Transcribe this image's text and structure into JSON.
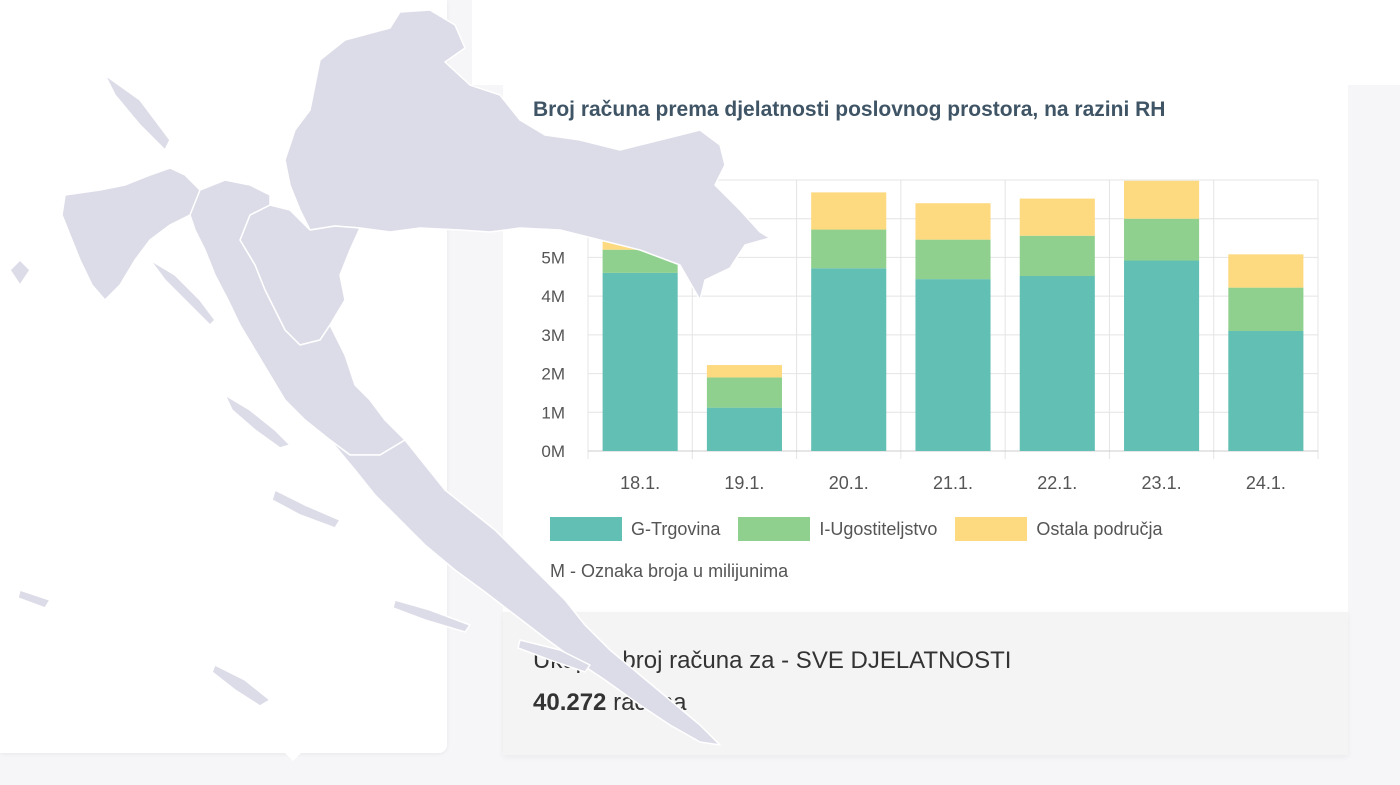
{
  "chart_data": {
    "type": "bar",
    "stacked": true,
    "title": "Broj računa prema djelatnosti poslovnog prostora, na razini RH",
    "categories": [
      "18.1.",
      "19.1.",
      "20.1.",
      "21.1.",
      "22.1.",
      "23.1.",
      "24.1."
    ],
    "series": [
      {
        "name": "G-Trgovina",
        "color": "#61bfb3",
        "values": [
          4.6,
          1.12,
          4.72,
          4.44,
          4.52,
          4.92,
          3.1
        ]
      },
      {
        "name": "I-Ugostiteljstvo",
        "color": "#90d08f",
        "values": [
          0.6,
          0.78,
          1.0,
          1.02,
          1.04,
          1.08,
          1.12
        ]
      },
      {
        "name": "Ostala područja",
        "color": "#fdd97f",
        "values": [
          1.0,
          0.32,
          0.96,
          0.94,
          0.96,
          0.98,
          0.86
        ]
      }
    ],
    "y_ticks": [
      "0M",
      "1M",
      "2M",
      "3M",
      "4M",
      "5M"
    ],
    "ylim": [
      0,
      7
    ],
    "grid": true,
    "legend_position": "bottom",
    "footnote": "M - Oznaka broja u milijunima"
  },
  "summary": {
    "label": "Ukupan broj računa za - SVE DJELATNOSTI",
    "total_prefix": "40.272",
    "total_suffix": "računa"
  },
  "map": {
    "fill_color": "#dcdce8",
    "border_color": "#ffffff"
  }
}
